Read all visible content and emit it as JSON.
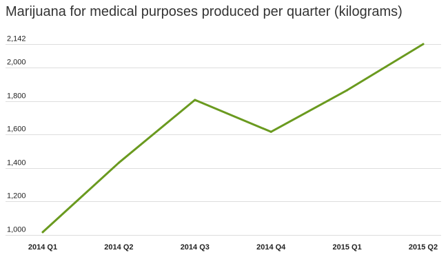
{
  "chart_data": {
    "type": "line",
    "title": "Marijuana for medical purposes produced per quarter (kilograms)",
    "xlabel": "",
    "ylabel": "",
    "categories": [
      "2014 Q1",
      "2014 Q2",
      "2014 Q3",
      "2014 Q4",
      "2015 Q1",
      "2015 Q2"
    ],
    "series": [
      {
        "values": [
          1017,
          1432,
          1808,
          1617,
          1866,
          2142
        ],
        "color": "#6a9a1f"
      }
    ],
    "yticks": [
      1000,
      1200,
      1400,
      1600,
      1800,
      2000,
      2142
    ],
    "ytick_labels": [
      "1,000",
      "1,200",
      "1,400",
      "1,600",
      "1,800",
      "2,000",
      "2,142"
    ],
    "ylim": [
      1000,
      2142
    ],
    "grid": true,
    "legend": "none"
  }
}
